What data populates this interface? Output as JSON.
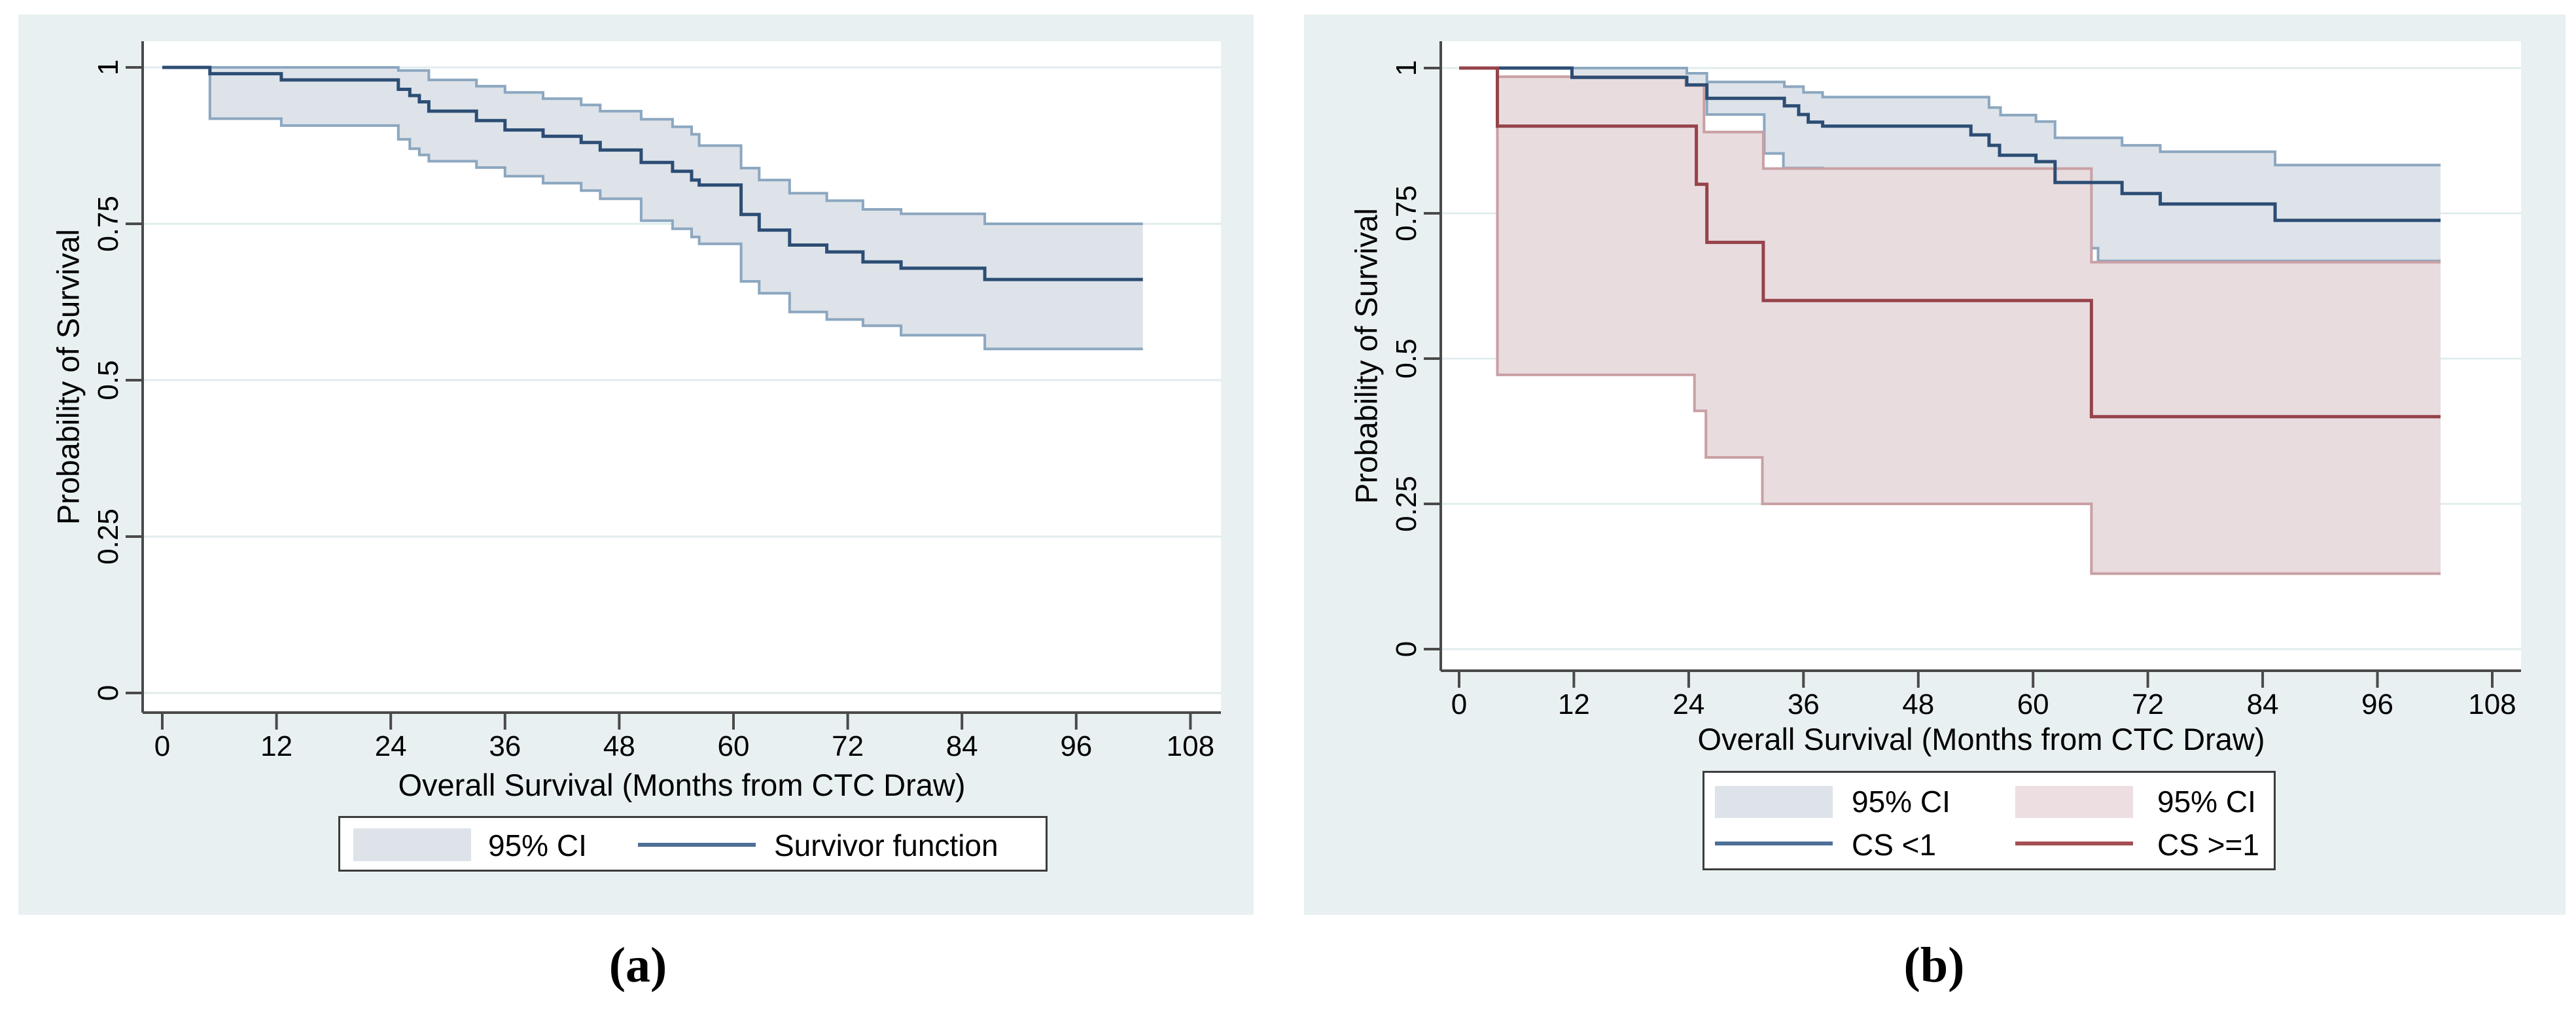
{
  "figure": {
    "panels": [
      {
        "id": "a",
        "caption": "(a)",
        "x_label": "Overall Survival (Months from CTC Draw)",
        "y_label": "Probability of Survival",
        "x_tick_labels": [
          "0",
          "12",
          "24",
          "36",
          "48",
          "60",
          "72",
          "84",
          "96",
          "108"
        ],
        "y_tick_labels": [
          "1",
          "0.75",
          "0.5",
          "0.25",
          "0"
        ],
        "legend": [
          {
            "type": "swatch",
            "color": "#dde3e9",
            "label": "95% CI"
          },
          {
            "type": "line",
            "color": "#4e6f96",
            "label": "Survivor function"
          }
        ]
      },
      {
        "id": "b",
        "caption": "(b)",
        "x_label": "Overall Survival (Months from CTC Draw)",
        "y_label": "Probability of Survival",
        "x_tick_labels": [
          "0",
          "12",
          "24",
          "36",
          "48",
          "60",
          "72",
          "84",
          "96",
          "108"
        ],
        "y_tick_labels": [
          "1",
          "0.75",
          "0.5",
          "0.25",
          "0"
        ],
        "legend": [
          {
            "type": "swatch",
            "color": "#dde3e9",
            "label": "95% CI"
          },
          {
            "type": "swatch",
            "color": "#ecdee1",
            "label": "95% CI"
          },
          {
            "type": "line",
            "color": "#4e6f96",
            "label": "CS <1"
          },
          {
            "type": "line",
            "color": "#a34f52",
            "label": "CS >=1"
          }
        ]
      }
    ]
  },
  "colors": {
    "figure_background": "#e9f0f2",
    "plot_background": "#ffffff",
    "gridline": "#e0eced",
    "axis": "#4a4a4a",
    "navy_line": "#2c4d74",
    "navy_ci_edge": "#8ca7c0",
    "navy_ci_fill": "#dde3e9",
    "maroon_line": "#96434a",
    "maroon_ci_edge": "#c9a0a4",
    "maroon_ci_fill": "#e8dcdf",
    "text": "#000000"
  },
  "chart_data": [
    {
      "type": "line",
      "subtype": "kaplan-meier-step",
      "title": "",
      "xlabel": "Overall Survival (Months from CTC Draw)",
      "ylabel": "Probability of Survival",
      "x_ticks": [
        0,
        12,
        24,
        36,
        48,
        60,
        72,
        84,
        96,
        108
      ],
      "y_ticks": [
        1,
        0.75,
        0.5,
        0.25,
        0
      ],
      "xlim": [
        0,
        113
      ],
      "ylim": [
        0,
        1
      ],
      "grid": "horizontal-only",
      "legend_position": "below",
      "end_time": 103,
      "series": [
        {
          "name": "Survivor function",
          "role": "line",
          "color": "#2c4d74",
          "steps": [
            [
              0,
              1
            ],
            [
              5,
              0.99
            ],
            [
              12.5,
              0.98
            ],
            [
              24.8,
              0.965
            ],
            [
              26,
              0.955
            ],
            [
              27,
              0.945
            ],
            [
              28,
              0.93
            ],
            [
              33,
              0.915
            ],
            [
              36,
              0.9
            ],
            [
              40,
              0.89
            ],
            [
              44,
              0.88
            ],
            [
              46,
              0.868
            ],
            [
              50.3,
              0.848
            ],
            [
              53.6,
              0.834
            ],
            [
              55.6,
              0.82
            ],
            [
              56.4,
              0.812
            ],
            [
              60.8,
              0.765
            ],
            [
              62.7,
              0.74
            ],
            [
              65.9,
              0.716
            ],
            [
              69.8,
              0.705
            ],
            [
              73.6,
              0.689
            ],
            [
              77.6,
              0.679
            ],
            [
              86.4,
              0.661
            ]
          ]
        },
        {
          "name": "95% CI",
          "role": "band",
          "fill": "#dde3e9",
          "edge": "#8ca7c0",
          "upper": [
            [
              0,
              1
            ],
            [
              24.8,
              0.995
            ],
            [
              28,
              0.98
            ],
            [
              33,
              0.97
            ],
            [
              36,
              0.96
            ],
            [
              40,
              0.95
            ],
            [
              44,
              0.94
            ],
            [
              46,
              0.93
            ],
            [
              50.3,
              0.917
            ],
            [
              53.6,
              0.905
            ],
            [
              55.6,
              0.893
            ],
            [
              56.4,
              0.875
            ],
            [
              60.8,
              0.839
            ],
            [
              62.7,
              0.82
            ],
            [
              65.9,
              0.799
            ],
            [
              69.8,
              0.787
            ],
            [
              73.6,
              0.773
            ],
            [
              77.6,
              0.766
            ],
            [
              86.4,
              0.75
            ]
          ],
          "lower": [
            [
              0,
              1
            ],
            [
              5,
              0.918
            ],
            [
              12.5,
              0.907
            ],
            [
              24.8,
              0.885
            ],
            [
              26,
              0.87
            ],
            [
              27,
              0.86
            ],
            [
              28,
              0.85
            ],
            [
              33,
              0.84
            ],
            [
              36,
              0.826
            ],
            [
              40,
              0.815
            ],
            [
              44,
              0.803
            ],
            [
              46,
              0.79
            ],
            [
              50.3,
              0.755
            ],
            [
              53.6,
              0.742
            ],
            [
              55.6,
              0.729
            ],
            [
              56.4,
              0.718
            ],
            [
              60.8,
              0.658
            ],
            [
              62.7,
              0.639
            ],
            [
              65.9,
              0.609
            ],
            [
              69.8,
              0.597
            ],
            [
              73.6,
              0.587
            ],
            [
              77.6,
              0.572
            ],
            [
              86.4,
              0.55
            ]
          ]
        }
      ]
    },
    {
      "type": "line",
      "subtype": "kaplan-meier-step",
      "title": "",
      "xlabel": "Overall Survival (Months from CTC Draw)",
      "ylabel": "Probability of Survival",
      "x_ticks": [
        0,
        12,
        24,
        36,
        48,
        60,
        72,
        84,
        96,
        108
      ],
      "y_ticks": [
        1,
        0.75,
        0.5,
        0.25,
        0
      ],
      "xlim": [
        0,
        113
      ],
      "ylim": [
        0,
        1
      ],
      "grid": "horizontal-only",
      "legend_position": "below",
      "end_time": 102.6,
      "series": [
        {
          "name": "CS <1",
          "role": "line",
          "color": "#2c4d74",
          "steps": [
            [
              0,
              1
            ],
            [
              11.8,
              0.984
            ],
            [
              23.8,
              0.971
            ],
            [
              25.9,
              0.948
            ],
            [
              34,
              0.935
            ],
            [
              35.5,
              0.92
            ],
            [
              36.5,
              0.907
            ],
            [
              38,
              0.9
            ],
            [
              53.5,
              0.885
            ],
            [
              55.4,
              0.867
            ],
            [
              56.5,
              0.85
            ],
            [
              60.3,
              0.839
            ],
            [
              62.3,
              0.803
            ],
            [
              69.3,
              0.784
            ],
            [
              73.3,
              0.766
            ],
            [
              85.3,
              0.738
            ]
          ]
        },
        {
          "name": "95% CI (CS <1)",
          "role": "band",
          "fill": "#dde3e9",
          "edge": "#8ca7c0",
          "upper": [
            [
              0,
              1
            ],
            [
              23.8,
              0.991
            ],
            [
              25.9,
              0.976
            ],
            [
              34,
              0.968
            ],
            [
              36,
              0.958
            ],
            [
              38,
              0.95
            ],
            [
              55.4,
              0.932
            ],
            [
              56.6,
              0.919
            ],
            [
              60.3,
              0.908
            ],
            [
              62.3,
              0.88
            ],
            [
              69.3,
              0.867
            ],
            [
              73.3,
              0.856
            ],
            [
              85.3,
              0.833
            ]
          ],
          "lower": [
            [
              0,
              1
            ],
            [
              11.8,
              0.971
            ],
            [
              23.8,
              0.948
            ],
            [
              25.9,
              0.92
            ],
            [
              31.9,
              0.853
            ],
            [
              33.9,
              0.828
            ],
            [
              38,
              0.82
            ],
            [
              62.3,
              0.69
            ],
            [
              66.8,
              0.668
            ]
          ]
        },
        {
          "name": "CS >=1",
          "role": "line",
          "color": "#96434a",
          "steps": [
            [
              0,
              1
            ],
            [
              4,
              0.9
            ],
            [
              24.8,
              0.8
            ],
            [
              25.9,
              0.7
            ],
            [
              31.8,
              0.6
            ],
            [
              66.1,
              0.4
            ]
          ]
        },
        {
          "name": "95% CI (CS >=1)",
          "role": "band",
          "fill": "#e8dcdf",
          "edge": "#c9a0a4",
          "upper": [
            [
              0,
              1
            ],
            [
              4,
              0.985
            ],
            [
              23.7,
              0.97
            ],
            [
              25.6,
              0.89
            ],
            [
              31.8,
              0.827
            ],
            [
              66.1,
              0.666
            ]
          ],
          "lower": [
            [
              0,
              1
            ],
            [
              4,
              0.472
            ],
            [
              24.6,
              0.41
            ],
            [
              25.8,
              0.33
            ],
            [
              31.7,
              0.25
            ],
            [
              66.1,
              0.13
            ]
          ]
        }
      ]
    }
  ]
}
